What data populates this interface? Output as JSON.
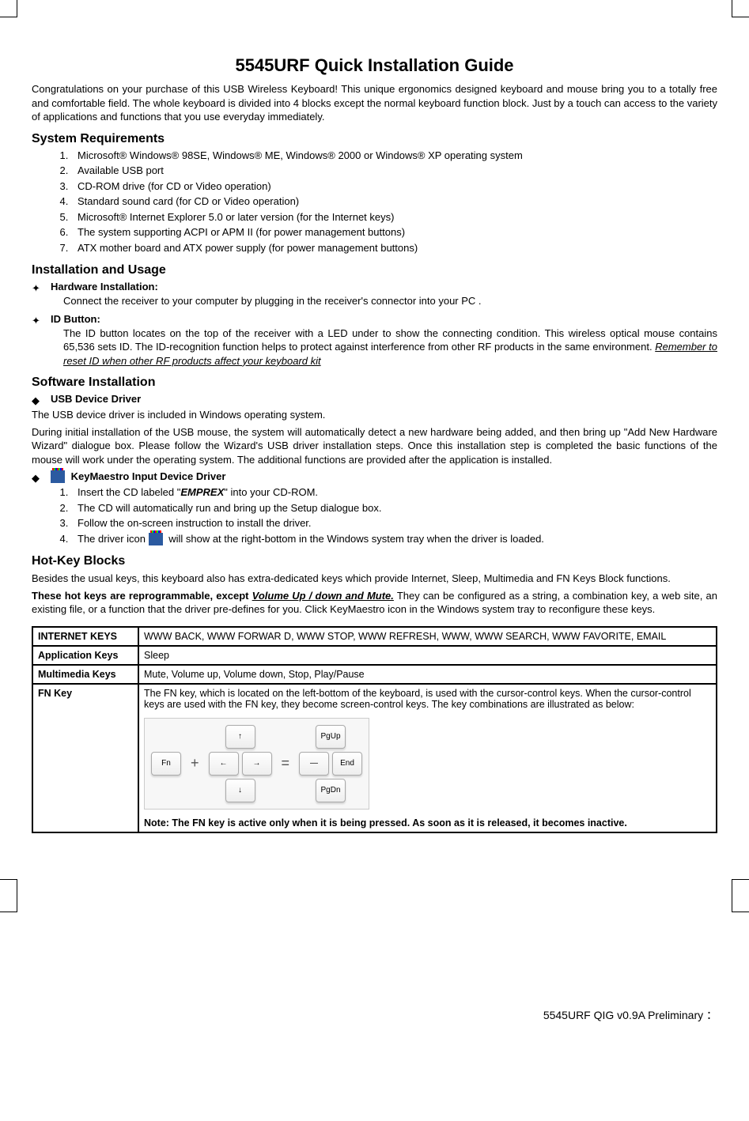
{
  "title": "5545URF Quick Installation Guide",
  "intro": "Congratulations on your purchase of this USB Wireless Keyboard!  This unique ergonomics designed keyboard and mouse bring you to a totally free and comfortable field. The whole keyboard is divided into 4 blocks except the normal keyboard function block. Just by a touch can access to the variety of applications and functions that you use everyday immediately.",
  "sections": {
    "sysreq": {
      "heading": "System Requirements",
      "items": [
        "Microsoft® Windows® 98SE, Windows® ME, Windows® 2000 or Windows® XP operating system",
        "Available USB port",
        "CD-ROM drive (for CD or Video operation)",
        "Standard sound card (for CD or Video operation)",
        "Microsoft® Internet Explorer 5.0 or later version (for the Internet keys)",
        "The system supporting ACPI or APM II (for power management buttons)",
        "ATX mother board and ATX power supply (for power management buttons)"
      ]
    },
    "install": {
      "heading": "Installation and Usage",
      "hw_title": "Hardware Installation:",
      "hw_text": "Connect the receiver to your computer by plugging in the receiver's connector into your PC .",
      "id_title": "ID Button:",
      "id_text": "The ID button locates on the top of the receiver with a LED under to show the connecting condition. This wireless optical mouse contains 65,536 sets ID. The ID-recognition function helps to protect against interference from other RF products in the same environment. ",
      "id_remember": "Remember to reset ID when other RF products affect your keyboard kit"
    },
    "software": {
      "heading": "Software Installation",
      "usb_title": "USB Device Driver",
      "usb_p1": "The USB device driver is included in Windows operating system.",
      "usb_p2": "During initial installation of the USB mouse, the system will automatically detect a new hardware being added, and then bring up \"Add New Hardware Wizard\" dialogue box. Please follow the Wizard's USB driver installation steps. Once this installation step is completed the basic functions of the mouse will work under the operating system. The additional functions are provided after the application is installed.",
      "km_title": " KeyMaestro Input Device Driver",
      "km_steps": [
        "Insert the CD labeled \"",
        "The CD will automatically run and bring up the Setup dialogue box.",
        "Follow the on-screen instruction to install the driver.",
        "The driver icon  will show at the right-bottom in the Windows system tray when the driver is loaded."
      ],
      "km_step1_emprex": "EMPREX",
      "km_step1_tail": "\" into your CD-ROM."
    },
    "hotkey": {
      "heading": "Hot-Key Blocks",
      "p1": "Besides the usual keys, this keyboard also has extra-dedicated keys which provide Internet, Sleep, Multimedia and FN Keys Block functions.",
      "p2a": "These hot keys are reprogrammable, except ",
      "p2_vol": "Volume Up / down and Mute.",
      "p2b": " They can be configured as a string, a combination key, a web site, an existing file, or a function that the driver pre-defines for you. Click KeyMaestro icon in the Windows system tray to reconfigure these keys."
    },
    "table": {
      "rows": [
        {
          "label": "INTERNET KEYS",
          "value": "WWW BACK, WWW FORWAR D, WWW STOP, WWW REFRESH, WWW, WWW SEARCH, WWW FAVORITE, EMAIL"
        },
        {
          "label": "Application Keys",
          "value": "Sleep"
        },
        {
          "label": "Multimedia Keys",
          "value": "Mute, Volume up, Volume down, Stop, Play/Pause"
        }
      ],
      "fn_label": "FN Key",
      "fn_text": "The FN key, which is located on the left-bottom of the keyboard, is used with the cursor-control keys. When the cursor-control keys are used with the FN key, they become screen-control keys. The key combinations are illustrated as below:",
      "fn_note": "Note: The FN key is active only when it is being pressed. As soon as it is released, it becomes inactive.",
      "diagram": {
        "fn": "Fn",
        "plus": "+",
        "eq": "=",
        "arrows": [
          "↑",
          "←",
          "→",
          "↓"
        ],
        "screen": [
          "PgUp",
          "—",
          "End",
          "PgDn"
        ]
      }
    }
  },
  "footer": "5545URF  QIG  v0.9A  Preliminary ："
}
